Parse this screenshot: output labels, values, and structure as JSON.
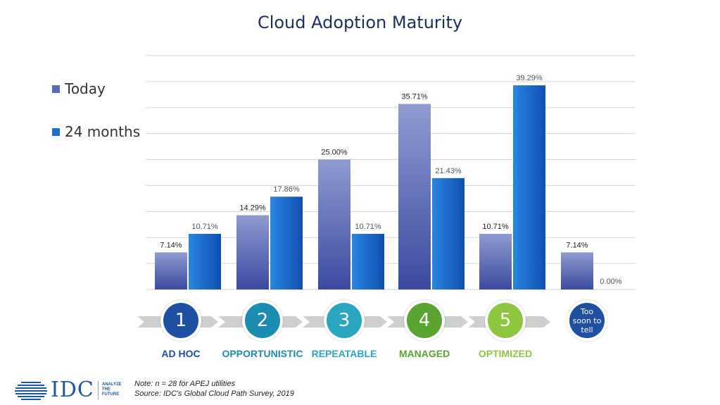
{
  "chart_data": {
    "type": "bar",
    "title": "Cloud Adoption Maturity",
    "categories": [
      "1",
      "2",
      "3",
      "4",
      "5",
      "Too soon to tell"
    ],
    "series": [
      {
        "name": "Today",
        "values": [
          7.14,
          14.29,
          25.0,
          35.71,
          10.71,
          7.14
        ],
        "labels": [
          "7.14%",
          "14.29%",
          "25.00%",
          "35.71%",
          "10.71%",
          "7.14%"
        ]
      },
      {
        "name": "24 months",
        "values": [
          10.71,
          17.86,
          10.71,
          21.43,
          39.29,
          0.0
        ],
        "labels": [
          "10.71%",
          "17.86%",
          "10.71%",
          "21.43%",
          "39.29%",
          "0.00%"
        ]
      }
    ],
    "ylim": [
      0,
      45
    ],
    "grid": true,
    "legend_position": "left"
  },
  "colors": {
    "today": "#5b6bb5",
    "months24": "#1e6fd0",
    "title": "#1d2f63",
    "stage1": "#1f4fa0",
    "stage2": "#1b8db0",
    "stage3": "#2aa6c0",
    "stage4": "#5aa531",
    "stage5": "#8dc63f",
    "stage6": "#1f4fa0"
  },
  "stages": [
    {
      "number": "1",
      "label": "AD HOC"
    },
    {
      "number": "2",
      "label": "OPPORTUNISTIC"
    },
    {
      "number": "3",
      "label": "REPEATABLE"
    },
    {
      "number": "4",
      "label": "MANAGED"
    },
    {
      "number": "5",
      "label": "OPTIMIZED"
    },
    {
      "number": "Too soon to tell",
      "label": ""
    }
  ],
  "footer": {
    "note": "Note: n = 28 for APEJ utilities",
    "source": "Source: IDC's Global Cloud Path Survey, 2019"
  },
  "logo": {
    "word": "IDC",
    "tag_lines": [
      "ANALYZE",
      "THE",
      "FUTURE"
    ],
    "icon": "globe-icon"
  }
}
